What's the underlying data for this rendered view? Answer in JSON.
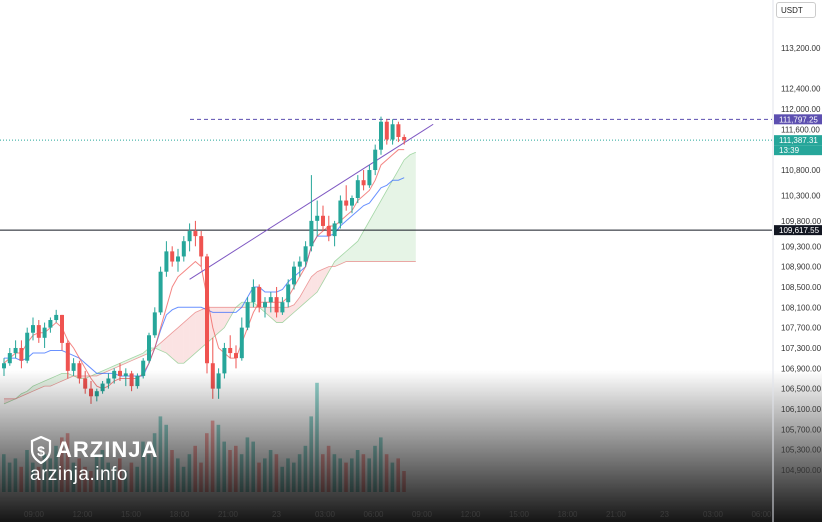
{
  "currency_button": "USDT",
  "watermark": {
    "brand": "ARZINJA",
    "site": "arzinja.info",
    "logo_icon": "dollar-shield-icon"
  },
  "colors": {
    "up": "#26a69a",
    "down": "#ef5350",
    "kijun": "#2962ff",
    "tenkan": "#ef5350",
    "trendline": "#7e57c2",
    "cloud_up": "#a5d6a7",
    "cloud_down": "#ef9a9a",
    "hline": "#131722"
  },
  "chart_data": {
    "type": "candlestick",
    "price_axis": [
      "113,200.00",
      "112,400.00",
      "112,000.00",
      "111,600.00",
      "110,800.00",
      "110,300.00",
      "109,800.00",
      "109,300.00",
      "108,900.00",
      "108,500.00",
      "108,100.00",
      "107,700.00",
      "107,300.00",
      "106,900.00",
      "106,500.00",
      "106,100.00",
      "105,700.00",
      "105,300.00",
      "104,900.00"
    ],
    "time_axis": [
      "09:00",
      "12:00",
      "15:00",
      "18:00",
      "21:00",
      "23",
      "03:00",
      "06:00",
      "09:00",
      "12:00",
      "15:00",
      "18:00",
      "21:00",
      "23",
      "03:00",
      "06:00"
    ],
    "price_tags": {
      "high_line": "111,797.25",
      "last_price": "111,387.31",
      "countdown": "13:39",
      "horizontal_line": "109,617.55"
    },
    "candles": [
      [
        106900,
        107100,
        106750,
        107000
      ],
      [
        107000,
        107300,
        106950,
        107200
      ],
      [
        107200,
        107450,
        107100,
        107300
      ],
      [
        107300,
        107450,
        106900,
        107050
      ],
      [
        107050,
        107700,
        107000,
        107600
      ],
      [
        107600,
        107900,
        107450,
        107750
      ],
      [
        107750,
        107850,
        107400,
        107500
      ],
      [
        107500,
        107800,
        107300,
        107700
      ],
      [
        107700,
        107900,
        107600,
        107850
      ],
      [
        107850,
        108050,
        107800,
        107950
      ],
      [
        107950,
        107950,
        107250,
        107400
      ],
      [
        107400,
        107450,
        106700,
        106850
      ],
      [
        106850,
        107100,
        106750,
        107000
      ],
      [
        107000,
        107050,
        106600,
        106700
      ],
      [
        106700,
        106850,
        106400,
        106500
      ],
      [
        106500,
        106650,
        106200,
        106350
      ],
      [
        106350,
        106500,
        106250,
        106450
      ],
      [
        106450,
        106650,
        106400,
        106600
      ],
      [
        106600,
        106800,
        106500,
        106700
      ],
      [
        106700,
        106900,
        106600,
        106850
      ],
      [
        106850,
        107000,
        106650,
        106750
      ],
      [
        106750,
        106900,
        106550,
        106800
      ],
      [
        106800,
        106850,
        106450,
        106550
      ],
      [
        106550,
        106800,
        106500,
        106750
      ],
      [
        106750,
        107100,
        106700,
        107050
      ],
      [
        107050,
        107600,
        107000,
        107550
      ],
      [
        107550,
        108100,
        107500,
        108000
      ],
      [
        108000,
        108900,
        107950,
        108800
      ],
      [
        108800,
        109400,
        108700,
        109200
      ],
      [
        109200,
        109300,
        108900,
        109000
      ],
      [
        109000,
        109250,
        108800,
        109100
      ],
      [
        109100,
        109500,
        109000,
        109400
      ],
      [
        109400,
        109750,
        109200,
        109600
      ],
      [
        109600,
        109800,
        109300,
        109500
      ],
      [
        109500,
        109600,
        108900,
        109100
      ],
      [
        109100,
        109150,
        106800,
        107000
      ],
      [
        107000,
        107500,
        106300,
        106500
      ],
      [
        106500,
        106900,
        106300,
        106800
      ],
      [
        106800,
        107400,
        106700,
        107300
      ],
      [
        107300,
        107550,
        107100,
        107200
      ],
      [
        107200,
        107350,
        106900,
        107100
      ],
      [
        107100,
        107900,
        107050,
        107700
      ],
      [
        107700,
        108300,
        107650,
        108200
      ],
      [
        108200,
        108650,
        108100,
        108500
      ],
      [
        108500,
        108550,
        108000,
        108100
      ],
      [
        108100,
        108300,
        107900,
        108200
      ],
      [
        108200,
        108400,
        108000,
        108300
      ],
      [
        108300,
        108500,
        107900,
        108000
      ],
      [
        108000,
        108300,
        107950,
        108200
      ],
      [
        108200,
        108650,
        108100,
        108550
      ],
      [
        108550,
        109000,
        108450,
        108900
      ],
      [
        108900,
        109100,
        108700,
        109000
      ],
      [
        109000,
        109400,
        108900,
        109300
      ],
      [
        109300,
        110700,
        109200,
        109800
      ],
      [
        109800,
        110200,
        109500,
        109900
      ],
      [
        109900,
        110100,
        109600,
        109700
      ],
      [
        109700,
        109900,
        109400,
        109500
      ],
      [
        109500,
        109800,
        109300,
        109750
      ],
      [
        109750,
        110300,
        109650,
        110200
      ],
      [
        110200,
        110500,
        110000,
        110100
      ],
      [
        110100,
        110300,
        109950,
        110250
      ],
      [
        110250,
        110700,
        110150,
        110600
      ],
      [
        110600,
        110800,
        110400,
        110500
      ],
      [
        110500,
        110900,
        110450,
        110800
      ],
      [
        110800,
        111300,
        110700,
        111200
      ],
      [
        111200,
        111850,
        111100,
        111750
      ],
      [
        111750,
        111800,
        111300,
        111400
      ],
      [
        111400,
        111800,
        111300,
        111700
      ],
      [
        111700,
        111750,
        111350,
        111450
      ],
      [
        111450,
        111500,
        111300,
        111390
      ]
    ],
    "volumes": [
      9,
      7,
      8,
      6,
      10,
      7,
      6,
      9,
      8,
      11,
      13,
      14,
      7,
      8,
      6,
      5,
      9,
      10,
      7,
      6,
      8,
      5,
      7,
      6,
      12,
      9,
      14,
      18,
      16,
      10,
      8,
      6,
      9,
      11,
      7,
      14,
      17,
      16,
      12,
      10,
      11,
      9,
      13,
      12,
      7,
      8,
      10,
      9,
      6,
      8,
      7,
      9,
      11,
      18,
      26,
      9,
      11,
      9,
      8,
      7,
      8,
      10,
      9,
      8,
      11,
      13,
      9,
      7,
      8,
      5
    ],
    "ichimoku_kijun": [
      107100,
      107100,
      107100,
      107050,
      107100,
      107200,
      107200,
      107200,
      107250,
      107250,
      107250,
      107200,
      107150,
      107100,
      107000,
      106900,
      106800,
      106800,
      106800,
      106800,
      106750,
      106750,
      106750,
      106750,
      106750,
      107000,
      107300,
      107650,
      107950,
      108050,
      108100,
      108100,
      108100,
      108100,
      108100,
      108050,
      108000,
      108000,
      108000,
      108000,
      108000,
      108100,
      108300,
      108500,
      108500,
      108400,
      108400,
      108400,
      108450,
      108600,
      108700,
      108800,
      108900,
      109300,
      109500,
      109500,
      109500,
      109550,
      109700,
      109800,
      109900,
      110000,
      110100,
      110150,
      110300,
      110450,
      110500,
      110600,
      110600,
      110650
    ],
    "ichimoku_tenkan": [
      107000,
      107100,
      107200,
      107200,
      107400,
      107550,
      107600,
      107600,
      107700,
      107800,
      107700,
      107450,
      107300,
      107100,
      106900,
      106700,
      106550,
      106500,
      106550,
      106650,
      106700,
      106700,
      106700,
      106700,
      106800,
      107000,
      107300,
      107700,
      108100,
      108500,
      108700,
      108800,
      108900,
      109000,
      108900,
      108300,
      107700,
      107300,
      107200,
      107100,
      107100,
      107400,
      107700,
      108000,
      108200,
      108200,
      108200,
      108200,
      108200,
      108300,
      108500,
      108700,
      108900,
      109300,
      109500,
      109600,
      109700,
      109700,
      109800,
      109900,
      110000,
      110200,
      110300,
      110400,
      110600,
      110900,
      111000,
      111100,
      111200,
      111200
    ],
    "trendline": {
      "from": [
        32,
        108650
      ],
      "to": [
        74,
        111700
      ]
    },
    "cloud": {
      "span_a": [
        106200,
        106250,
        106300,
        106400,
        106450,
        106550,
        106600,
        106650,
        106700,
        106750,
        106800,
        106800,
        106750,
        106700,
        106700,
        106750,
        106800,
        106850,
        106900,
        106950,
        107000,
        107050,
        107100,
        107150,
        107200,
        107300,
        107300,
        107250,
        107200,
        107100,
        107000,
        107000,
        107100,
        107200,
        107300,
        107400,
        107500,
        107600,
        107700,
        107900,
        108100,
        108200,
        108200,
        108200,
        108100,
        108000,
        107900,
        107800,
        107800,
        107900,
        108000,
        108100,
        108200,
        108300,
        108400,
        108600,
        108800,
        109000,
        109100,
        109200,
        109300,
        109400,
        109600,
        109800,
        110000,
        110200,
        110400,
        110600,
        110800,
        111000,
        111100,
        111150
      ],
      "span_b": [
        106300,
        106300,
        106300,
        106350,
        106400,
        106450,
        106500,
        106550,
        106550,
        106600,
        106650,
        106700,
        106750,
        106750,
        106750,
        106750,
        106750,
        106800,
        106850,
        106900,
        106950,
        107000,
        107050,
        107100,
        107150,
        107200,
        107300,
        107400,
        107500,
        107600,
        107700,
        107800,
        107900,
        108000,
        108050,
        108100,
        108100,
        108100,
        108100,
        108100,
        108100,
        108100,
        108100,
        108100,
        108100,
        108100,
        108100,
        108100,
        108100,
        108100,
        108150,
        108300,
        108500,
        108700,
        108800,
        108850,
        108900,
        108900,
        108950,
        109000,
        109000,
        109000,
        109000,
        109000,
        109000,
        109000,
        109000,
        109000,
        109000,
        109000,
        109000,
        109000
      ]
    }
  }
}
